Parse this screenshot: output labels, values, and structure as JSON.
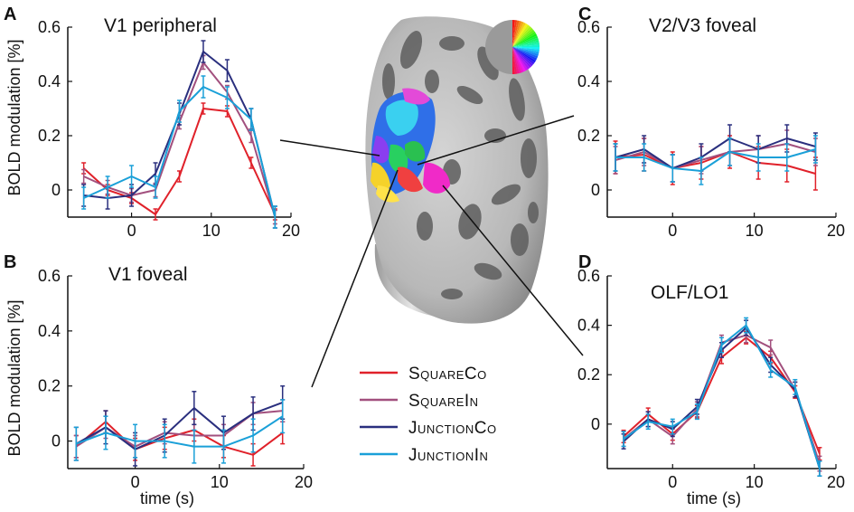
{
  "figure": {
    "ylabel": "BOLD modulation [%]",
    "xlabel": "time (s)"
  },
  "legend": [
    {
      "name": "SquareCo",
      "color": "#e0212a"
    },
    {
      "name": "SquareIn",
      "color": "#a2507e"
    },
    {
      "name": "JunctionCo",
      "color": "#2a2f7e"
    },
    {
      "name": "JunctionIn",
      "color": "#1aa0d8"
    }
  ],
  "colorwheel_label": "",
  "chart_data": [
    {
      "type": "line",
      "letter": "A",
      "title": "V1 peripheral",
      "ylim": [
        -0.1,
        0.6
      ],
      "yticks": [
        0,
        0.2,
        0.4,
        0.6
      ],
      "ytick_labels": [
        "0",
        "0.2",
        "0.4",
        "0.6"
      ],
      "xlim": [
        -8,
        20
      ],
      "xticks": [
        0,
        10,
        20
      ],
      "xtick_labels": [
        "0",
        "10",
        "20"
      ],
      "x": [
        -6,
        -3,
        0,
        3,
        6,
        9,
        12,
        15,
        18
      ],
      "series": [
        {
          "name": "SquareCo",
          "values": [
            0.08,
            0.0,
            -0.03,
            -0.09,
            0.05,
            0.3,
            0.29,
            0.1,
            -0.09
          ],
          "err": 0.02
        },
        {
          "name": "SquareIn",
          "values": [
            0.05,
            0.01,
            -0.02,
            0.0,
            0.25,
            0.47,
            0.36,
            0.2,
            -0.1
          ],
          "err": 0.025
        },
        {
          "name": "JunctionCo",
          "values": [
            -0.02,
            -0.03,
            -0.02,
            0.06,
            0.28,
            0.51,
            0.44,
            0.26,
            -0.1
          ],
          "err": 0.04
        },
        {
          "name": "JunctionIn",
          "values": [
            -0.03,
            0.01,
            0.05,
            0.01,
            0.29,
            0.38,
            0.34,
            0.26,
            -0.1
          ],
          "err": 0.04
        }
      ]
    },
    {
      "type": "line",
      "letter": "B",
      "title": "V1 foveal",
      "ylim": [
        -0.1,
        0.6
      ],
      "yticks": [
        0,
        0.2,
        0.4,
        0.6
      ],
      "ytick_labels": [
        "0",
        "0.2",
        "0.4",
        "0.6"
      ],
      "xlim": [
        -8,
        20
      ],
      "xticks": [
        0,
        10,
        20
      ],
      "xtick_labels": [
        "0",
        "10",
        "20"
      ],
      "x": [
        -7,
        -3.5,
        0,
        3.5,
        7,
        10.5,
        14,
        17.5
      ],
      "series": [
        {
          "name": "SquareCo",
          "values": [
            -0.02,
            0.07,
            -0.03,
            0.01,
            0.04,
            -0.02,
            -0.05,
            0.03
          ],
          "err": 0.04
        },
        {
          "name": "SquareIn",
          "values": [
            -0.02,
            0.05,
            -0.02,
            0.03,
            0.02,
            0.02,
            0.1,
            0.11
          ],
          "err": 0.04
        },
        {
          "name": "JunctionCo",
          "values": [
            -0.01,
            0.05,
            -0.03,
            0.02,
            0.12,
            0.03,
            0.1,
            0.14
          ],
          "err": 0.06
        },
        {
          "name": "JunctionIn",
          "values": [
            -0.01,
            0.03,
            0.0,
            0.0,
            -0.02,
            -0.02,
            0.02,
            0.09
          ],
          "err": 0.06
        }
      ]
    },
    {
      "type": "line",
      "letter": "C",
      "title": "V2/V3 foveal",
      "ylim": [
        -0.1,
        0.6
      ],
      "yticks": [
        0,
        0.2,
        0.4,
        0.6
      ],
      "ytick_labels": [
        "0",
        "0.2",
        "0.4",
        "0.6"
      ],
      "xlim": [
        -8,
        20
      ],
      "xticks": [
        0,
        10,
        20
      ],
      "xtick_labels": [
        "0",
        "10",
        "20"
      ],
      "x": [
        -7,
        -3.5,
        0,
        3.5,
        7,
        10.5,
        14,
        17.5
      ],
      "series": [
        {
          "name": "SquareCo",
          "values": [
            0.12,
            0.13,
            0.08,
            0.1,
            0.14,
            0.1,
            0.09,
            0.06
          ],
          "err": 0.06
        },
        {
          "name": "SquareIn",
          "values": [
            0.11,
            0.14,
            0.08,
            0.11,
            0.14,
            0.15,
            0.17,
            0.14
          ],
          "err": 0.05
        },
        {
          "name": "JunctionCo",
          "values": [
            0.12,
            0.15,
            0.08,
            0.12,
            0.19,
            0.15,
            0.19,
            0.16
          ],
          "err": 0.05
        },
        {
          "name": "JunctionIn",
          "values": [
            0.12,
            0.12,
            0.08,
            0.07,
            0.14,
            0.12,
            0.12,
            0.15
          ],
          "err": 0.05
        }
      ]
    },
    {
      "type": "line",
      "letter": "D",
      "title": "OLF/LO1",
      "ylim": [
        -0.18,
        0.6
      ],
      "yticks": [
        0,
        0.2,
        0.4,
        0.6
      ],
      "ytick_labels": [
        "0",
        "0.2",
        "0.4",
        "0.6"
      ],
      "xlim": [
        -8,
        20
      ],
      "xticks": [
        0,
        10,
        20
      ],
      "xtick_labels": [
        "0",
        "10",
        "20"
      ],
      "x": [
        -6,
        -3,
        0,
        3,
        6,
        9,
        12,
        15,
        18
      ],
      "series": [
        {
          "name": "SquareCo",
          "values": [
            -0.05,
            0.04,
            -0.04,
            0.05,
            0.27,
            0.35,
            0.27,
            0.13,
            -0.12
          ],
          "err": 0.025
        },
        {
          "name": "SquareIn",
          "values": [
            -0.06,
            0.02,
            -0.05,
            0.06,
            0.33,
            0.36,
            0.31,
            0.14,
            -0.16
          ],
          "err": 0.03
        },
        {
          "name": "JunctionCo",
          "values": [
            -0.07,
            0.02,
            -0.02,
            0.07,
            0.3,
            0.39,
            0.24,
            0.14,
            -0.18
          ],
          "err": 0.03
        },
        {
          "name": "JunctionIn",
          "values": [
            -0.06,
            0.01,
            -0.01,
            0.05,
            0.32,
            0.4,
            0.22,
            0.15,
            -0.18
          ],
          "err": 0.03
        }
      ]
    }
  ]
}
